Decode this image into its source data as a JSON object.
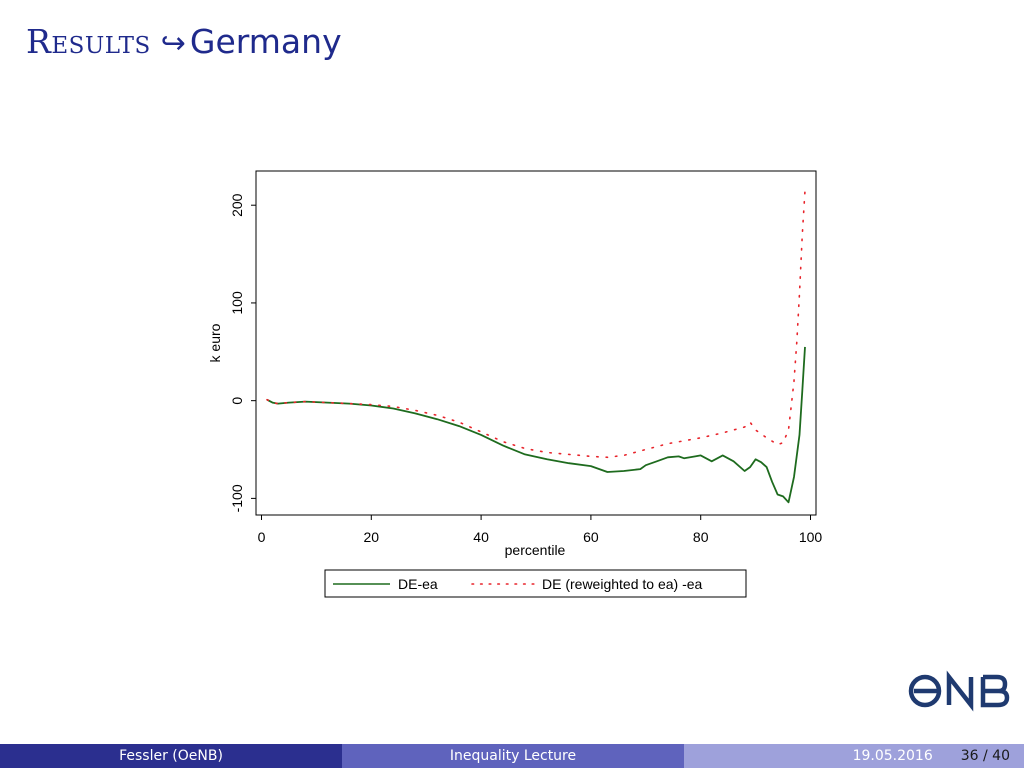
{
  "slide": {
    "title_main": "Results",
    "title_arrow": "↪",
    "title_sub": "Germany"
  },
  "footer": {
    "author": "Fessler  (OeNB)",
    "talk": "Inequality Lecture",
    "date": "19.05.2016",
    "page": "36 / 40"
  },
  "logo": {
    "text": "ONB",
    "icon": "onb-logo-icon",
    "color": "#1f3a70"
  },
  "colors": {
    "series1": "#1e6b1e",
    "series2": "#e8242b",
    "title": "#1f2a8c"
  },
  "chart_data": {
    "type": "line",
    "xlabel": "percentile",
    "ylabel": "k euro",
    "xlim": [
      -1,
      101
    ],
    "ylim": [
      -117,
      235
    ],
    "xticks": [
      0,
      20,
      40,
      60,
      80,
      100
    ],
    "yticks": [
      -100,
      0,
      100,
      200
    ],
    "grid": false,
    "legend": "bottom",
    "series": [
      {
        "name": "DE-ea",
        "style": "solid",
        "color": "#1e6b1e",
        "x": [
          1,
          2,
          3,
          5,
          8,
          12,
          16,
          20,
          24,
          28,
          32,
          36,
          40,
          44,
          48,
          52,
          56,
          60,
          63,
          66,
          69,
          70,
          72,
          74,
          76,
          77,
          79,
          80,
          82,
          84,
          86,
          88,
          89,
          90,
          91,
          92,
          93,
          94,
          95,
          96,
          97,
          98,
          98.5,
          99
        ],
        "y": [
          1,
          -2,
          -3,
          -2,
          -1,
          -2,
          -3,
          -5,
          -8,
          -13,
          -19,
          -26,
          -35,
          -46,
          -55,
          -60,
          -64,
          -67,
          -73,
          -72,
          -70,
          -66,
          -62,
          -58,
          -57,
          -59,
          -57,
          -56,
          -62,
          -56,
          -62,
          -72,
          -68,
          -60,
          -63,
          -68,
          -83,
          -96,
          -98,
          -104,
          -78,
          -35,
          10,
          55
        ]
      },
      {
        "name": "DE (reweighted to ea) -ea",
        "style": "dotted",
        "color": "#e8242b",
        "x": [
          1,
          2,
          3,
          5,
          8,
          12,
          16,
          20,
          24,
          28,
          32,
          36,
          40,
          44,
          48,
          52,
          56,
          60,
          63,
          66,
          70,
          74,
          78,
          80,
          84,
          88,
          89,
          90,
          92,
          94,
          95,
          96,
          96.5,
          97,
          97.5,
          98,
          98.5,
          99
        ],
        "y": [
          1,
          -2,
          -3,
          -2,
          -1,
          -2,
          -3,
          -4,
          -6,
          -10,
          -15,
          -22,
          -32,
          -42,
          -49,
          -53,
          -55,
          -57,
          -58,
          -56,
          -50,
          -44,
          -40,
          -38,
          -33,
          -27,
          -22,
          -30,
          -38,
          -45,
          -43,
          -30,
          -5,
          20,
          60,
          110,
          170,
          215
        ]
      }
    ]
  }
}
